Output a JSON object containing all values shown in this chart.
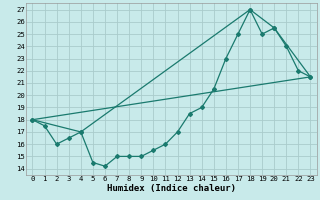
{
  "xlabel": "Humidex (Indice chaleur)",
  "ylabel": "",
  "bg_color": "#c8eaea",
  "grid_color": "#aacccc",
  "line_color": "#1a7a6e",
  "xlim": [
    -0.5,
    23.5
  ],
  "ylim": [
    13.5,
    27.5
  ],
  "yticks": [
    14,
    15,
    16,
    17,
    18,
    19,
    20,
    21,
    22,
    23,
    24,
    25,
    26,
    27
  ],
  "xticks": [
    0,
    1,
    2,
    3,
    4,
    5,
    6,
    7,
    8,
    9,
    10,
    11,
    12,
    13,
    14,
    15,
    16,
    17,
    18,
    19,
    20,
    21,
    22,
    23
  ],
  "line1_x": [
    0,
    1,
    2,
    3,
    4,
    5,
    6,
    7,
    8,
    9,
    10,
    11,
    12,
    13,
    14,
    15,
    16,
    17,
    18,
    19,
    20,
    21,
    22,
    23
  ],
  "line1_y": [
    18,
    17.5,
    16,
    16.5,
    17,
    14.5,
    14.2,
    15,
    15,
    15,
    15.5,
    16,
    17,
    18.5,
    19,
    20.5,
    23,
    25,
    27,
    25,
    25.5,
    24,
    22,
    21.5
  ],
  "line2_x": [
    0,
    4,
    18,
    20,
    23
  ],
  "line2_y": [
    18,
    17,
    27,
    25.5,
    21.5
  ],
  "line3_x": [
    0,
    23
  ],
  "line3_y": [
    18,
    21.5
  ],
  "xlabel_fontsize": 6.5,
  "tick_fontsize": 5.2
}
